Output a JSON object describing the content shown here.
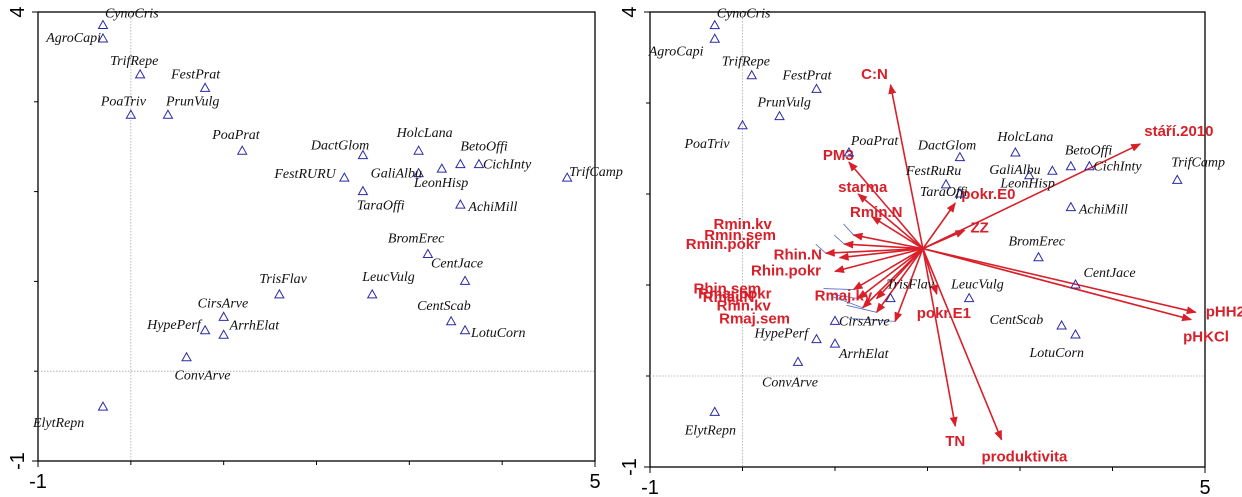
{
  "colors": {
    "species": "#2a2aa6",
    "env": "#d8202a",
    "supplementary": "#5b6cc0",
    "frame": "#000000"
  },
  "chart_data": [
    {
      "type": "scatter",
      "title": "",
      "xlabel": "",
      "ylabel": "",
      "xlim": [
        -1,
        5
      ],
      "ylim": [
        -1,
        4
      ],
      "x_ticks": [
        "-1",
        "5"
      ],
      "y_ticks": [
        "-1",
        "4"
      ],
      "grid": false,
      "zero_lines": true,
      "marker": "triangle",
      "series": [
        {
          "points": [
            {
              "label": "CynoCris",
              "x": -0.3,
              "y": 3.85
            },
            {
              "label": "AgroCapi",
              "x": -0.3,
              "y": 3.7
            },
            {
              "label": "TrifRepe",
              "x": 0.1,
              "y": 3.3
            },
            {
              "label": "FestPrat",
              "x": 0.8,
              "y": 3.15
            },
            {
              "label": "PoaTriv",
              "x": 0.0,
              "y": 2.85
            },
            {
              "label": "PrunVulg",
              "x": 0.4,
              "y": 2.85
            },
            {
              "label": "PoaPrat",
              "x": 1.2,
              "y": 2.45
            },
            {
              "label": "DactGlom",
              "x": 2.5,
              "y": 2.4
            },
            {
              "label": "HolcLana",
              "x": 3.1,
              "y": 2.45
            },
            {
              "label": "GaliAlbu",
              "x": 3.1,
              "y": 2.2
            },
            {
              "label": "BetoOffi",
              "x": 3.55,
              "y": 2.3
            },
            {
              "label": "CichInty",
              "x": 3.75,
              "y": 2.3
            },
            {
              "label": "TrifCamp",
              "x": 4.7,
              "y": 2.15
            },
            {
              "label": "FestRURU",
              "x": 2.3,
              "y": 2.15
            },
            {
              "label": "LeonHisp",
              "x": 3.35,
              "y": 2.25
            },
            {
              "label": "TaraOffi",
              "x": 2.5,
              "y": 2.0
            },
            {
              "label": "AchiMill",
              "x": 3.55,
              "y": 1.85
            },
            {
              "label": "BromErec",
              "x": 3.2,
              "y": 1.3
            },
            {
              "label": "CentJace",
              "x": 3.6,
              "y": 1.0
            },
            {
              "label": "TrisFlav",
              "x": 1.6,
              "y": 0.85
            },
            {
              "label": "LeucVulg",
              "x": 2.6,
              "y": 0.85
            },
            {
              "label": "CentScab",
              "x": 3.45,
              "y": 0.55
            },
            {
              "label": "LotuCorn",
              "x": 3.6,
              "y": 0.45
            },
            {
              "label": "CirsArve",
              "x": 1.0,
              "y": 0.6
            },
            {
              "label": "HypePerf",
              "x": 0.8,
              "y": 0.45
            },
            {
              "label": "ArrhElat",
              "x": 1.0,
              "y": 0.4
            },
            {
              "label": "ConvArve",
              "x": 0.6,
              "y": 0.15
            },
            {
              "label": "ElytRepn",
              "x": -0.3,
              "y": -0.4
            }
          ]
        }
      ]
    },
    {
      "type": "scatter",
      "title": "",
      "xlabel": "",
      "ylabel": "",
      "xlim": [
        -1,
        5
      ],
      "ylim": [
        -1,
        4
      ],
      "x_ticks": [
        "-1",
        "5"
      ],
      "y_ticks": [
        "-1",
        "4"
      ],
      "grid": false,
      "zero_lines": true,
      "marker": "triangle",
      "series": [
        {
          "points": [
            {
              "label": "CynoCris",
              "x": -0.3,
              "y": 3.85
            },
            {
              "label": "AgroCapi",
              "x": -0.3,
              "y": 3.7
            },
            {
              "label": "TrifRepe",
              "x": 0.1,
              "y": 3.3
            },
            {
              "label": "FestPrat",
              "x": 0.8,
              "y": 3.15
            },
            {
              "label": "PrunVulg",
              "x": 0.4,
              "y": 2.85
            },
            {
              "label": "PoaTriv",
              "x": 0.0,
              "y": 2.75
            },
            {
              "label": "PoaPrat",
              "x": 1.15,
              "y": 2.45
            },
            {
              "label": "DactGlom",
              "x": 2.35,
              "y": 2.4
            },
            {
              "label": "HolcLana",
              "x": 2.95,
              "y": 2.45
            },
            {
              "label": "BetoOffi",
              "x": 3.55,
              "y": 2.3
            },
            {
              "label": "CichInty",
              "x": 3.75,
              "y": 2.3
            },
            {
              "label": "TrifCamp",
              "x": 4.7,
              "y": 2.15
            },
            {
              "label": "FestRuRu",
              "x": 2.2,
              "y": 2.1
            },
            {
              "label": "GaliAlbu",
              "x": 3.1,
              "y": 2.2
            },
            {
              "label": "LeonHisp",
              "x": 3.35,
              "y": 2.25
            },
            {
              "label": "TaraOffi",
              "x": 2.35,
              "y": 2.0
            },
            {
              "label": "AchiMill",
              "x": 3.55,
              "y": 1.85
            },
            {
              "label": "BromErec",
              "x": 3.2,
              "y": 1.3
            },
            {
              "label": "CentJace",
              "x": 3.6,
              "y": 1.0
            },
            {
              "label": "TrisFlav",
              "x": 1.6,
              "y": 0.85
            },
            {
              "label": "LeucVulg",
              "x": 2.45,
              "y": 0.85
            },
            {
              "label": "CentScab",
              "x": 3.45,
              "y": 0.55
            },
            {
              "label": "LotuCorn",
              "x": 3.6,
              "y": 0.45
            },
            {
              "label": "CirsArve",
              "x": 1.0,
              "y": 0.6
            },
            {
              "label": "HypePerf",
              "x": 0.8,
              "y": 0.4
            },
            {
              "label": "ArrhElat",
              "x": 1.0,
              "y": 0.35
            },
            {
              "label": "ConvArve",
              "x": 0.6,
              "y": 0.15
            },
            {
              "label": "ElytRepn",
              "x": -0.3,
              "y": -0.4
            }
          ]
        }
      ],
      "environmental_vectors": [
        {
          "label": "C:N",
          "x": 1.6,
          "y": 3.2
        },
        {
          "label": "stáří.2010",
          "x": 4.3,
          "y": 2.55
        },
        {
          "label": "PM3",
          "x": 1.15,
          "y": 2.35
        },
        {
          "label": "starma",
          "x": 1.25,
          "y": 2.0
        },
        {
          "label": "Rmin.N",
          "x": 1.4,
          "y": 1.75
        },
        {
          "label": "pokr.E0",
          "x": 2.3,
          "y": 1.9
        },
        {
          "label": "Rmin.kv",
          "x": 1.2,
          "y": 1.55
        },
        {
          "label": "Rmin.sem",
          "x": 1.1,
          "y": 1.45
        },
        {
          "label": "ZZ",
          "x": 2.4,
          "y": 1.6
        },
        {
          "label": "Rmin.pokr",
          "x": 0.9,
          "y": 1.35
        },
        {
          "label": "Rhin.N",
          "x": 1.05,
          "y": 1.3
        },
        {
          "label": "Rhin.pokr",
          "x": 1.0,
          "y": 1.15
        },
        {
          "label": "pHH2O",
          "x": 4.9,
          "y": 0.7
        },
        {
          "label": "pHKCl",
          "x": 4.85,
          "y": 0.62
        },
        {
          "label": "Rhin.sem",
          "x": 1.2,
          "y": 0.95
        },
        {
          "label": "Rmaj.pokr",
          "x": 1.25,
          "y": 0.85
        },
        {
          "label": "Rmaj.ky",
          "x": 1.45,
          "y": 0.85
        },
        {
          "label": "Rmaj.N",
          "x": 1.3,
          "y": 0.75
        },
        {
          "label": "Rhin.kv",
          "x": 1.45,
          "y": 0.7
        },
        {
          "label": "Rmaj.sem",
          "x": 1.65,
          "y": 0.6
        },
        {
          "label": "pokr.E1",
          "x": 2.1,
          "y": 0.9
        },
        {
          "label": "TN",
          "x": 2.3,
          "y": -0.55
        },
        {
          "label": "produktivita",
          "x": 2.8,
          "y": -0.7
        }
      ]
    }
  ]
}
